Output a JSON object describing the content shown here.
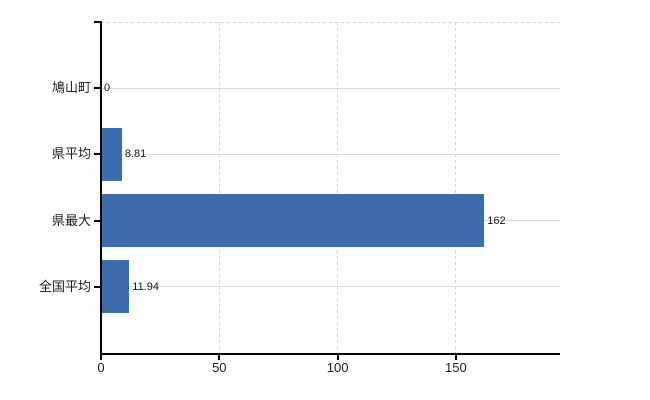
{
  "chart_data": {
    "type": "bar",
    "orientation": "horizontal",
    "title": "",
    "xlabel": "",
    "ylabel": "",
    "categories": [
      "鳩山町",
      "県平均",
      "県最大",
      "全国平均"
    ],
    "values": [
      0,
      8.81,
      162,
      11.94
    ],
    "value_labels": [
      "0",
      "8.81",
      "162",
      "11.94"
    ],
    "xticks": [
      "0",
      "50",
      "100",
      "150"
    ],
    "xtick_values": [
      0,
      50,
      100,
      150
    ],
    "xlim": [
      0,
      194
    ],
    "legend_position": "none",
    "grid": {
      "horizontal": "solid at category centers",
      "vertical": "dashed at x ticks",
      "top_border": "dashed"
    },
    "colors": {
      "bar": "#3d6dae",
      "axis": "#000000",
      "h_grid": "#d5ddd5",
      "v_grid": "#d6d2d6",
      "text": "#1a1a1a"
    }
  }
}
